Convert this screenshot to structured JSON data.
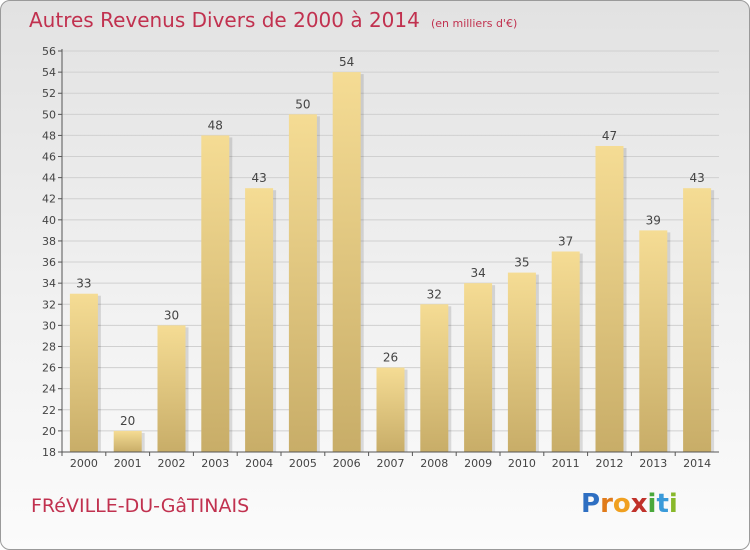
{
  "header": {
    "title": "Autres Revenus Divers de 2000 à 2014",
    "subtitle": "(en milliers d'€)"
  },
  "footer": {
    "town": "FRéVILLE-DU-GâTINAIS",
    "logo_letters": [
      "P",
      "r",
      "o",
      "x",
      "i",
      "t",
      "i"
    ],
    "logo_colors": [
      "#2e6fc2",
      "#e07b1a",
      "#f0a020",
      "#c0312a",
      "#4aa83c",
      "#3a9ad9",
      "#88b82a"
    ]
  },
  "colors": {
    "bar_top": "#f5dc94",
    "bar_bottom": "#c8ad68",
    "axis": "#555555",
    "grid": "#d0d0d0"
  },
  "chart_data": {
    "type": "bar",
    "title": "Autres Revenus Divers de 2000 à 2014",
    "xlabel": "",
    "ylabel": "",
    "ylim": [
      18,
      56
    ],
    "grid": true,
    "categories": [
      "2000",
      "2001",
      "2002",
      "2003",
      "2004",
      "2005",
      "2006",
      "2007",
      "2008",
      "2009",
      "2010",
      "2011",
      "2012",
      "2013",
      "2014"
    ],
    "values": [
      33,
      20,
      30,
      48,
      43,
      50,
      54,
      26,
      32,
      34,
      35,
      37,
      47,
      39,
      43
    ],
    "yticks": [
      18,
      20,
      22,
      24,
      26,
      28,
      30,
      32,
      34,
      36,
      38,
      40,
      42,
      44,
      46,
      48,
      50,
      52,
      54,
      56
    ]
  }
}
